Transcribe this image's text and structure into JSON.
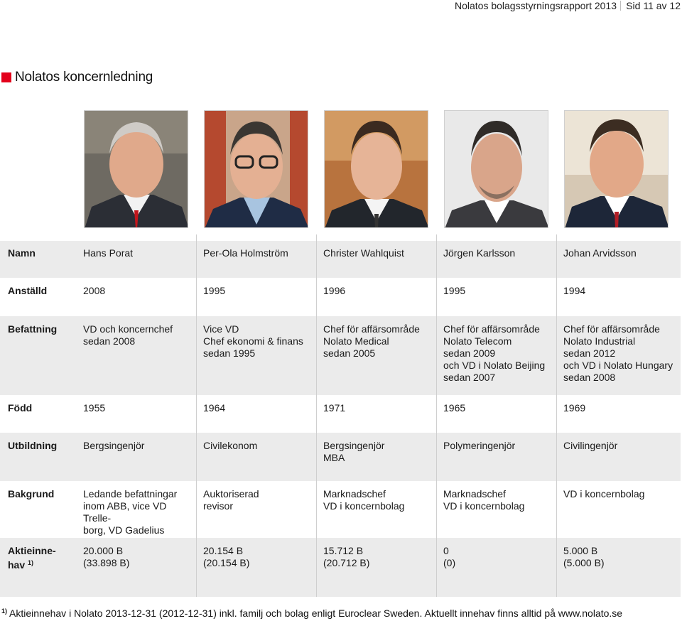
{
  "header": {
    "report_title": "Nolatos bolagsstyrningsrapport 2013",
    "page": "Sid 11 av 12"
  },
  "section": {
    "title": "Nolatos koncernledning"
  },
  "people": [
    {
      "namn": "Hans Porat",
      "anstalld": "2008",
      "befattning": "VD och koncernchef\nsedan 2008",
      "fodd": "1955",
      "utbildning": "Bergsingenjör",
      "bakgrund": "Ledande befattningar\ninom ABB, vice VD Trelle-\nborg, VD Gadelius Japan.",
      "aktieinnehav": "20.000 B\n(33.898 B)"
    },
    {
      "namn": "Per-Ola Holmström",
      "anstalld": "1995",
      "befattning": "Vice VD\nChef ekonomi & finans\nsedan 1995",
      "fodd": "1964",
      "utbildning": "Civilekonom",
      "bakgrund": "Auktoriserad\nrevisor",
      "aktieinnehav": "20.154 B\n(20.154 B)"
    },
    {
      "namn": "Christer Wahlquist",
      "anstalld": "1996",
      "befattning": "Chef för affärsområde\nNolato Medical\nsedan 2005",
      "fodd": "1971",
      "utbildning": "Bergsingenjör\nMBA",
      "bakgrund": "Marknadschef\nVD i koncernbolag",
      "aktieinnehav": "15.712 B\n(20.712 B)"
    },
    {
      "namn": "Jörgen Karlsson",
      "anstalld": "1995",
      "befattning": "Chef för affärsområde\nNolato Telecom\nsedan 2009\noch VD i Nolato Beijing\nsedan 2007",
      "fodd": "1965",
      "utbildning": "Polymeringenjör",
      "bakgrund": "Marknadschef\nVD i koncernbolag",
      "aktieinnehav": "0\n(0)"
    },
    {
      "namn": "Johan Arvidsson",
      "anstalld": "1994",
      "befattning": "Chef för affärsområde\nNolato Industrial\nsedan 2012\noch VD i Nolato Hungary\nsedan 2008",
      "fodd": "1969",
      "utbildning": "Civilingenjör",
      "bakgrund": "VD i koncernbolag",
      "aktieinnehav": "5.000 B\n(5.000 B)"
    }
  ],
  "labels": {
    "namn": "Namn",
    "anstalld": "Anställd",
    "befattning": "Befattning",
    "fodd": "Född",
    "utbildning": "Utbildning",
    "bakgrund": "Bakgrund",
    "aktieinnehav": "Aktieinne-\nhav",
    "aktieinnehav_sup": "1)"
  },
  "footnote": {
    "marker": "1)",
    "text": "Aktieinnehav i Nolato 2013-12-31 (2012-12-31) inkl. familj och bolag enligt Euroclear Sweden. Aktuellt innehav finns alltid på www.nolato.se"
  }
}
